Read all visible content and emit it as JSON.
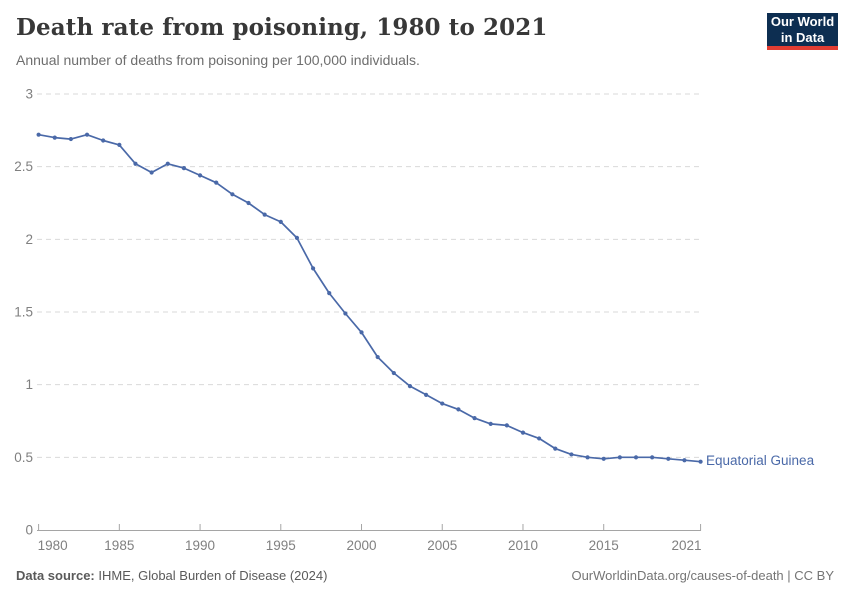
{
  "header": {
    "title": "Death rate from poisoning, 1980 to 2021",
    "subtitle": "Annual number of deaths from poisoning per 100,000 individuals."
  },
  "logo": {
    "line1": "Our World",
    "line2": "in Data",
    "bg_color": "#0d2e51",
    "accent_color": "#e23d32"
  },
  "chart_data": {
    "type": "line",
    "title": "Death rate from poisoning, 1980 to 2021",
    "subtitle": "Annual number of deaths from poisoning per 100,000 individuals.",
    "x": [
      1980,
      1981,
      1982,
      1983,
      1984,
      1985,
      1986,
      1987,
      1988,
      1989,
      1990,
      1991,
      1992,
      1993,
      1994,
      1995,
      1996,
      1997,
      1998,
      1999,
      2000,
      2001,
      2002,
      2003,
      2004,
      2005,
      2006,
      2007,
      2008,
      2009,
      2010,
      2011,
      2012,
      2013,
      2014,
      2015,
      2016,
      2017,
      2018,
      2019,
      2020,
      2021
    ],
    "series": [
      {
        "name": "Equatorial Guinea",
        "color": "#4a69a8",
        "values": [
          2.72,
          2.7,
          2.69,
          2.72,
          2.68,
          2.65,
          2.52,
          2.46,
          2.52,
          2.49,
          2.44,
          2.39,
          2.31,
          2.25,
          2.17,
          2.12,
          2.01,
          1.8,
          1.63,
          1.49,
          1.36,
          1.19,
          1.08,
          0.99,
          0.93,
          0.87,
          0.83,
          0.77,
          0.73,
          0.72,
          0.67,
          0.63,
          0.56,
          0.52,
          0.5,
          0.49,
          0.5,
          0.5,
          0.5,
          0.49,
          0.48,
          0.47
        ]
      }
    ],
    "xlim": [
      1980,
      2021
    ],
    "ylim": [
      0,
      3
    ],
    "xticks": [
      1980,
      1985,
      1990,
      1995,
      2000,
      2005,
      2010,
      2015,
      2021
    ],
    "xtick_labels": [
      "1980",
      "1985",
      "1990",
      "1995",
      "2000",
      "2005",
      "2010",
      "2015",
      "2021"
    ],
    "yticks": [
      0,
      0.5,
      1,
      1.5,
      2,
      2.5,
      3
    ],
    "ytick_labels": [
      "0",
      "0.5",
      "1",
      "1.5",
      "2",
      "2.5",
      "3"
    ],
    "grid": "horizontal-dashed",
    "legend_position": "end-of-line",
    "end_label": "Equatorial Guinea",
    "colors": {
      "line": "#4a69a8",
      "gridline": "#dadada",
      "axis": "#a5a5a5",
      "tick_text": "#808080"
    }
  },
  "footer": {
    "source_label": "Data source:",
    "source_text": " IHME, Global Burden of Disease (2024)",
    "right_text": "OurWorldinData.org/causes-of-death | CC BY"
  }
}
